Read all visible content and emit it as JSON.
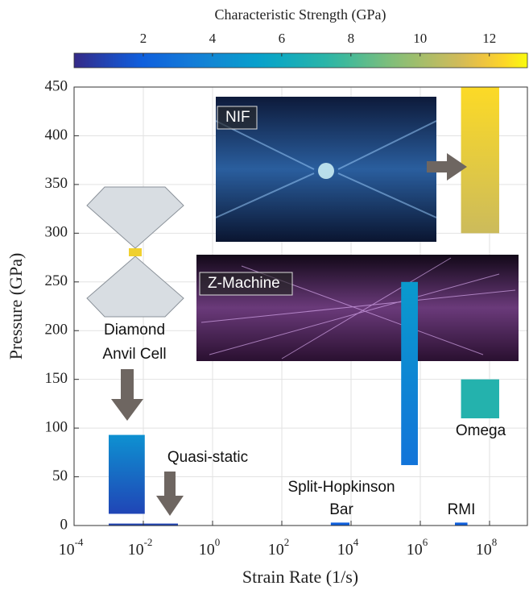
{
  "chart_data": {
    "type": "regions",
    "xlabel": "Strain Rate (1/s)",
    "ylabel": "Pressure (GPa)",
    "xscale": "log",
    "grid": true,
    "xlim": [
      0.0001,
      1000000000
    ],
    "ylim": [
      0,
      450
    ],
    "xticks": [
      {
        "value": 0.0001,
        "label": [
          "10",
          "-4"
        ]
      },
      {
        "value": 0.01,
        "label": [
          "10",
          "-2"
        ]
      },
      {
        "value": 1,
        "label": [
          "10",
          "0"
        ]
      },
      {
        "value": 100,
        "label": [
          "10",
          "2"
        ]
      },
      {
        "value": 10000,
        "label": [
          "10",
          "4"
        ]
      },
      {
        "value": 1000000,
        "label": [
          "10",
          "6"
        ]
      },
      {
        "value": 100000000,
        "label": [
          "10",
          "8"
        ]
      }
    ],
    "yticks": [
      0,
      50,
      100,
      150,
      200,
      250,
      300,
      350,
      400,
      450
    ],
    "colorbar": {
      "label": "Characteristic Strength (GPa)",
      "lim": [
        0,
        13.1
      ],
      "ticks": [
        2,
        4,
        6,
        8,
        10,
        12
      ]
    },
    "regions": [
      {
        "label": [
          "Diamond",
          "Anvil Cell"
        ],
        "x": [
          0.001,
          0.011
        ],
        "y": [
          12,
          93
        ],
        "strength": [
          1,
          4.5
        ]
      },
      {
        "label": [
          "Quasi-static"
        ],
        "x": [
          0.001,
          0.1
        ],
        "y": [
          0,
          2
        ],
        "strength": [
          1,
          1
        ]
      },
      {
        "label": [
          "Split-Hopkinson",
          "Bar"
        ],
        "x": [
          2600,
          9000
        ],
        "y": [
          0,
          3
        ],
        "strength": [
          2,
          2
        ]
      },
      {
        "label": [
          "RMI"
        ],
        "x": [
          10000000,
          23000000
        ],
        "y": [
          0,
          3
        ],
        "strength": [
          2,
          2
        ]
      },
      {
        "label": [
          "Z-Machine"
        ],
        "x": [
          280000,
          850000
        ],
        "y": [
          62,
          250
        ],
        "strength": [
          3,
          5
        ]
      },
      {
        "label": [
          "Omega"
        ],
        "x": [
          15000000,
          190000000
        ],
        "y": [
          110,
          150
        ],
        "strength": [
          7,
          7
        ]
      },
      {
        "label": [
          "NIF"
        ],
        "x": [
          15000000,
          190000000
        ],
        "y": [
          300,
          450
        ],
        "strength": [
          11,
          12.5
        ]
      }
    ]
  }
}
